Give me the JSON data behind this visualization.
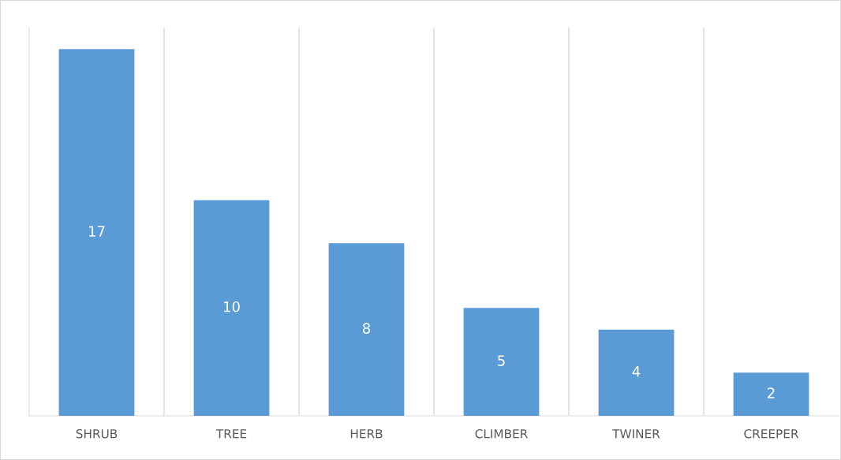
{
  "chart_data": {
    "type": "bar",
    "categories": [
      "SHRUB",
      "TREE",
      "HERB",
      "CLIMBER",
      "TWINER",
      "CREEPER"
    ],
    "values": [
      17,
      10,
      8,
      5,
      4,
      2
    ],
    "color": "#5b9bd5",
    "ylim": [
      0,
      18
    ],
    "grid": "x",
    "data_labels": true,
    "tick_labels": "x"
  }
}
